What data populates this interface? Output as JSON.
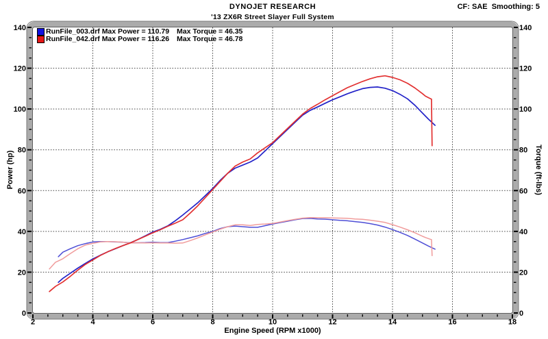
{
  "header": {
    "title": "DYNOJET RESEARCH",
    "subtitle": "'13 ZX6R Street Slayer Full System",
    "cf_smoothing": "CF: SAE  Smoothing: 5"
  },
  "legend": {
    "rows": [
      {
        "file": "RunFile_003.drf",
        "file_power": "RunFile_003.drf Max Power = 110.79",
        "torque": "Max Torque = 46.35",
        "swatch": "#1010e0"
      },
      {
        "file": "RunFile_042.drf",
        "file_power": "RunFile_042.drf Max Power = 116.26",
        "torque": "Max Torque = 46.78",
        "swatch": "#e51515"
      }
    ]
  },
  "chart_data": {
    "type": "line",
    "title": "'13 ZX6R Street Slayer Full System",
    "correction": "SAE",
    "smoothing": "5",
    "grid": "dotted major gridlines",
    "legend_position": "top-left inside plot",
    "x_axis": {
      "label": "Engine Speed (RPM x1000)",
      "min": 2,
      "max": 18,
      "major_step": 2,
      "minor_step": 0.5,
      "tick_labels": [
        "2",
        "4",
        "6",
        "8",
        "10",
        "12",
        "14",
        "16",
        "18"
      ]
    },
    "y_left": {
      "label": "Power (hp)",
      "min": 0,
      "max": 140,
      "major_step": 20,
      "minor_step": 5,
      "tick_labels": [
        "0",
        "20",
        "40",
        "60",
        "80",
        "100",
        "120",
        "140"
      ]
    },
    "y_right": {
      "label": "Torque (ft-lbs)",
      "min": 0,
      "max": 140,
      "major_step": 20,
      "minor_step": 5,
      "tick_labels": [
        "0",
        "20",
        "40",
        "60",
        "80",
        "100",
        "120",
        "140"
      ]
    },
    "series": [
      {
        "name": "RunFile_003.drf",
        "max_power": 110.79,
        "max_torque": 46.35,
        "power_color": "#2222c8",
        "torque_color": "#4d4dd6",
        "rpm": [
          2.85,
          3.0,
          3.25,
          3.5,
          3.75,
          4.0,
          4.25,
          4.5,
          4.75,
          5.0,
          5.25,
          5.5,
          5.75,
          6.0,
          6.25,
          6.5,
          6.75,
          7.0,
          7.25,
          7.5,
          7.75,
          8.0,
          8.25,
          8.5,
          8.75,
          9.0,
          9.25,
          9.5,
          9.75,
          10.0,
          10.25,
          10.5,
          10.75,
          11.0,
          11.25,
          11.5,
          11.75,
          12.0,
          12.25,
          12.5,
          12.75,
          13.0,
          13.25,
          13.5,
          13.75,
          14.0,
          14.25,
          14.5,
          14.75,
          15.0,
          15.2,
          15.42
        ],
        "hp": [
          15,
          17,
          19.5,
          22,
          24.3,
          26.5,
          28.3,
          30,
          31.5,
          33,
          34.4,
          36,
          37.8,
          39.7,
          41,
          42.7,
          45.2,
          48,
          51,
          54,
          57.5,
          61,
          65,
          68.5,
          71,
          72.5,
          74,
          76,
          79.5,
          83,
          86.5,
          90,
          93.5,
          97,
          99.3,
          101,
          102.8,
          104.5,
          106,
          107.5,
          108.8,
          110,
          110.6,
          110.79,
          110.2,
          109,
          107.2,
          105,
          101.8,
          98,
          95,
          92
        ],
        "torque": [
          27.6,
          29.8,
          31.5,
          33.0,
          34.0,
          34.8,
          35.0,
          35.0,
          34.8,
          34.7,
          34.4,
          34.4,
          34.5,
          34.7,
          34.5,
          34.5,
          35.2,
          36.0,
          36.9,
          37.8,
          39.0,
          40.0,
          41.4,
          42.3,
          42.6,
          42.3,
          42.0,
          42.0,
          42.8,
          43.6,
          44.3,
          45.0,
          45.7,
          46.3,
          46.35,
          46.1,
          46.0,
          45.7,
          45.4,
          45.2,
          44.8,
          44.4,
          43.8,
          43.1,
          42.1,
          40.9,
          39.5,
          38.0,
          36.2,
          34.3,
          32.8,
          31.3
        ]
      },
      {
        "name": "RunFile_042.drf",
        "max_power": 116.26,
        "max_torque": 46.78,
        "power_color": "#e23030",
        "torque_color": "#f09b9b",
        "rpm": [
          2.55,
          2.75,
          3.0,
          3.25,
          3.5,
          3.75,
          4.0,
          4.25,
          4.5,
          4.75,
          5.0,
          5.25,
          5.5,
          5.75,
          6.0,
          6.25,
          6.5,
          6.75,
          7.0,
          7.25,
          7.5,
          7.75,
          8.0,
          8.25,
          8.5,
          8.75,
          9.0,
          9.25,
          9.5,
          9.75,
          10.0,
          10.25,
          10.5,
          10.75,
          11.0,
          11.25,
          11.5,
          11.75,
          12.0,
          12.25,
          12.5,
          12.75,
          13.0,
          13.25,
          13.5,
          13.75,
          14.0,
          14.25,
          14.5,
          14.75,
          15.0,
          15.1,
          15.25,
          15.3,
          15.32
        ],
        "hp": [
          10.5,
          13,
          15.2,
          18,
          21,
          23.8,
          26,
          28.2,
          30,
          31.6,
          33,
          34.3,
          36,
          37.6,
          39.3,
          40.8,
          42.5,
          44,
          45.7,
          49,
          52.5,
          56.5,
          60.5,
          64.5,
          68.5,
          72,
          74,
          75.5,
          78.5,
          81,
          83.5,
          87,
          90.5,
          94,
          97.5,
          100.2,
          102.3,
          104.5,
          106.5,
          108.5,
          110.5,
          112,
          113.5,
          114.8,
          115.8,
          116.26,
          115.5,
          114.3,
          112.6,
          110.3,
          107.5,
          106.3,
          105.2,
          104.8,
          82
        ],
        "torque": [
          21.6,
          24.8,
          26.6,
          29.1,
          31.5,
          33.3,
          34.1,
          34.8,
          35.0,
          34.9,
          34.7,
          34.3,
          34.4,
          34.3,
          34.4,
          34.3,
          34.3,
          34.2,
          34.3,
          35.5,
          36.8,
          38.3,
          39.7,
          41.1,
          42.3,
          43.2,
          43.2,
          42.9,
          43.4,
          43.6,
          43.9,
          44.6,
          45.3,
          45.9,
          46.5,
          46.78,
          46.7,
          46.7,
          46.6,
          46.5,
          46.4,
          46.1,
          45.9,
          45.5,
          45.0,
          44.4,
          43.3,
          42.1,
          40.8,
          39.3,
          37.6,
          37.0,
          36.2,
          36.0,
          28.1
        ]
      }
    ]
  }
}
